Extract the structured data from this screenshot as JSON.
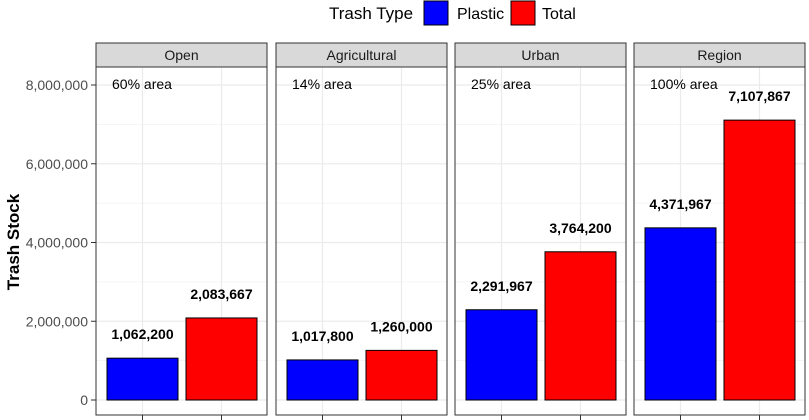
{
  "chart_data": {
    "type": "bar",
    "facets": [
      "Open",
      "Agricultural",
      "Urban",
      "Region"
    ],
    "annotations": [
      "60% area",
      "14% area",
      "25% area",
      "100% area"
    ],
    "series": [
      {
        "name": "Plastic",
        "color": "#0000ff",
        "values": [
          1062200,
          1017800,
          2291967,
          4371967
        ],
        "labels": [
          "1,062,200",
          "1,017,800",
          "2,291,967",
          "4,371,967"
        ]
      },
      {
        "name": "Total",
        "color": "#ff0000",
        "values": [
          2083667,
          1260000,
          3764200,
          7107867
        ],
        "labels": [
          "2,083,667",
          "1,260,000",
          "3,764,200",
          "7,107,867"
        ]
      }
    ],
    "ylabel": "Trash Stock",
    "ylim": [
      0,
      8400000
    ],
    "yticks": [
      0,
      2000000,
      4000000,
      6000000,
      8000000
    ],
    "ytick_labels": [
      "0",
      "2,000,000",
      "4,000,000",
      "6,000,000",
      "8,000,000"
    ],
    "legend": {
      "title": "Trash Type",
      "position": "top"
    },
    "grid": true
  }
}
